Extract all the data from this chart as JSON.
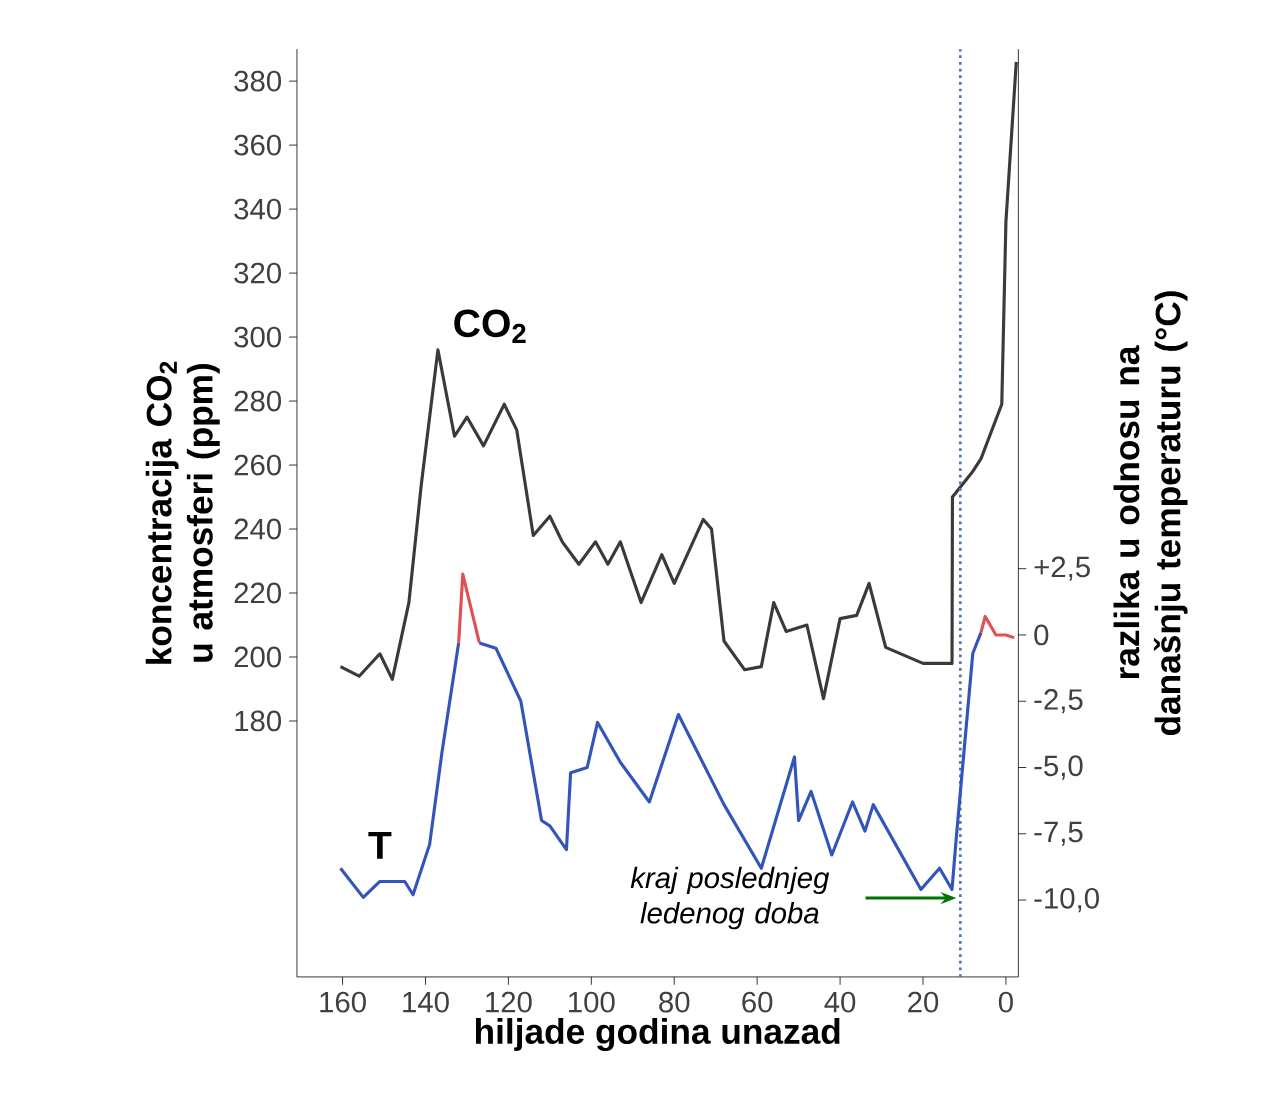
{
  "chart_data": {
    "type": "line",
    "xlabel": "hiljade godina unazad",
    "ylabel": "koncentracija CO$_{2}$ u atmosferi (ppm)",
    "y2label": "razlika u odnosu na današnju temperaturu (°C)",
    "xlim": [
      171,
      -3
    ],
    "xticks": [
      160,
      140,
      120,
      100,
      80,
      60,
      40,
      20,
      0
    ],
    "ylim": [
      100,
      390
    ],
    "yticks": [
      180,
      200,
      220,
      240,
      260,
      280,
      300,
      320,
      340,
      360,
      380
    ],
    "y2lim": [
      -12.9,
      22.1
    ],
    "y2ticks": [
      {
        "value": 2.5,
        "label": "+2,5"
      },
      0,
      {
        "value": -2.5,
        "label": "-2,5"
      },
      {
        "value": -5,
        "label": "-5,0"
      },
      {
        "value": -7.5,
        "label": "-7,5"
      },
      {
        "value": -10,
        "label": "-10,0"
      }
    ],
    "line_style": "solid",
    "series": [
      {
        "name": "CO$_{2}$",
        "color": "#3a3a3a",
        "x": [
          160.5,
          156,
          151,
          148,
          144,
          141,
          137,
          133,
          130,
          126,
          121,
          118,
          114,
          110,
          107,
          103,
          99,
          96,
          93,
          88,
          83,
          80,
          73,
          71,
          68,
          63,
          59,
          56,
          53,
          48,
          44,
          40,
          36,
          33,
          31,
          29,
          20,
          13,
          12.9,
          8,
          6,
          1,
          0,
          -2.5
        ],
        "values": [
          197,
          194,
          201,
          193,
          217,
          254,
          296,
          269,
          275,
          266,
          279,
          271,
          238,
          244,
          236,
          229,
          236,
          229,
          236,
          217,
          232,
          223,
          243,
          240,
          205,
          196,
          197,
          217,
          208,
          210,
          187,
          212,
          213,
          223,
          213,
          203,
          198,
          198,
          250,
          258,
          262,
          279,
          336,
          386
        ]
      },
      {
        "name": "T",
        "color": "#3355bb",
        "axis": "y2",
        "x": [
          160.5,
          155,
          151,
          145,
          143,
          139,
          136,
          132,
          131,
          127,
          123,
          117,
          112,
          110,
          106,
          105,
          101,
          98.5,
          93,
          86,
          79,
          68,
          59,
          51,
          50,
          47,
          42,
          37,
          34,
          32,
          20.5,
          16,
          13,
          12,
          8,
          6
        ],
        "values": [
          -8.8,
          -9.9,
          -9.3,
          -9.3,
          -9.8,
          -7.9,
          -4.4,
          -0.3,
          null,
          -0.3,
          -0.5,
          -2.5,
          -7.0,
          -7.2,
          -8.1,
          -5.2,
          -5.0,
          -3.3,
          -4.8,
          -6.3,
          -3.0,
          -6.4,
          -8.8,
          -4.6,
          -7.0,
          -5.9,
          -8.3,
          -6.3,
          -7.4,
          -6.4,
          -9.6,
          -8.8,
          -9.6,
          -7.7,
          -0.7,
          0.1
        ]
      },
      {
        "color": "#e05050",
        "axis": "y2",
        "x": [
          132,
          131,
          127,
          20,
          6,
          5,
          2.4,
          0,
          -2
        ],
        "values": [
          -0.3,
          2.3,
          -0.3,
          null,
          0.1,
          0.7,
          0,
          0,
          -0.1
        ]
      }
    ],
    "ref_lines": [
      {
        "axis": "x",
        "value": 11,
        "color": "#5577aa",
        "line_style": "dotted"
      }
    ],
    "annotations": [
      "kraj poslednjeg ledenog doba"
    ]
  }
}
